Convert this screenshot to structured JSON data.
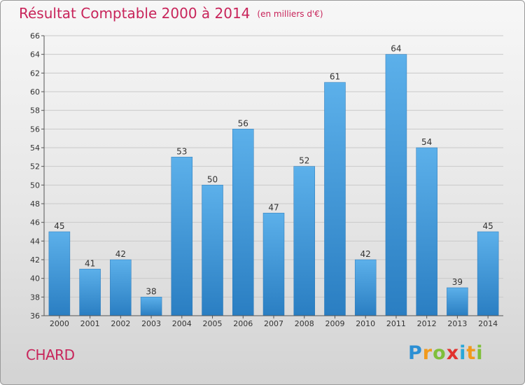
{
  "title": "Résultat Comptable 2000 à 2014",
  "unit": "(en milliers d'€)",
  "city": "CHARD",
  "logo_text": "Proxiti",
  "chart_data": {
    "type": "bar",
    "title": "Résultat Comptable 2000 à 2014",
    "subtitle": "(en milliers d'€)",
    "categories": [
      "2000",
      "2001",
      "2002",
      "2003",
      "2004",
      "2005",
      "2006",
      "2007",
      "2008",
      "2009",
      "2010",
      "2011",
      "2012",
      "2013",
      "2014"
    ],
    "values": [
      45,
      41,
      42,
      38,
      53,
      50,
      56,
      47,
      52,
      61,
      42,
      64,
      54,
      39,
      45
    ],
    "ylim": [
      36,
      66
    ],
    "yticks": [
      36,
      38,
      40,
      42,
      44,
      46,
      48,
      50,
      52,
      54,
      56,
      58,
      60,
      62,
      64,
      66
    ],
    "grid": true,
    "bar_color": "#3d96d8"
  }
}
